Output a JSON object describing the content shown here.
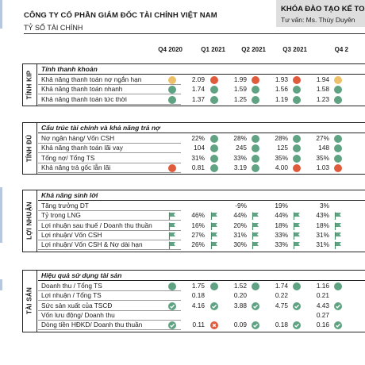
{
  "header": {
    "company": "CÔNG TY CỔ PHẦN GIÁM ĐỐC TÀI CHÍNH VIỆT NAM",
    "subtitle": "TỶ SỐ TÀI CHÍNH",
    "panel_title": "KHÓA ĐÀO TẠO KẾ TOÁ",
    "panel_sub": "Tư vấn: Ms. Thùy Duyên"
  },
  "quarters": [
    "Q4 2020",
    "Q1 2021",
    "Q2 2021",
    "Q3 2021",
    "Q4 2"
  ],
  "colors": {
    "green": "#5fa383",
    "red": "#e05a3c",
    "yellow": "#edc16a"
  },
  "sections": [
    {
      "side": "TÍNH KIP",
      "title": "Tính thanh khoản",
      "rows": [
        {
          "label": "Khả năng thanh toán nợ ngắn hạn",
          "cells": [
            {
              "icon": "yellow-dot",
              "value": "2.09"
            },
            {
              "icon": "red-dot",
              "value": "1.99"
            },
            {
              "icon": "red-dot",
              "value": "1.93"
            },
            {
              "icon": "red-dot",
              "value": "1.94"
            },
            {
              "icon": "yellow-dot",
              "value": ""
            }
          ]
        },
        {
          "label": "Khả năng thanh toán nhanh",
          "cells": [
            {
              "icon": "green-dot",
              "value": "1.74"
            },
            {
              "icon": "green-dot",
              "value": "1.59"
            },
            {
              "icon": "green-dot",
              "value": "1.56"
            },
            {
              "icon": "green-dot",
              "value": "1.58"
            },
            {
              "icon": "green-dot",
              "value": ""
            }
          ]
        },
        {
          "label": "Khả năng thanh toán tức thời",
          "cells": [
            {
              "icon": "green-dot",
              "value": "1.37"
            },
            {
              "icon": "green-dot",
              "value": "1.25"
            },
            {
              "icon": "green-dot",
              "value": "1.19"
            },
            {
              "icon": "green-dot",
              "value": "1.23"
            },
            {
              "icon": "green-dot",
              "value": ""
            }
          ]
        }
      ]
    },
    {
      "side": "TÍNH ĐỦ",
      "title": "Cấu trúc tài chính và khả năng trả nợ",
      "rows": [
        {
          "label": "Nợ ngân hàng/ Vốn CSH",
          "cells": [
            {
              "icon": "none",
              "value": "22%"
            },
            {
              "icon": "green-dot",
              "value": "28%"
            },
            {
              "icon": "green-dot",
              "value": "28%"
            },
            {
              "icon": "green-dot",
              "value": "27%"
            },
            {
              "icon": "green-dot",
              "value": ""
            }
          ]
        },
        {
          "label": "Khả năng thanh toán lãi vay",
          "cells": [
            {
              "icon": "none",
              "value": "104"
            },
            {
              "icon": "green-dot",
              "value": "245"
            },
            {
              "icon": "green-dot",
              "value": "125"
            },
            {
              "icon": "green-dot",
              "value": "148"
            },
            {
              "icon": "green-dot",
              "value": ""
            }
          ]
        },
        {
          "label": "Tổng nợ/ Tổng TS",
          "cells": [
            {
              "icon": "none",
              "value": "31%"
            },
            {
              "icon": "green-dot",
              "value": "33%"
            },
            {
              "icon": "green-dot",
              "value": "35%"
            },
            {
              "icon": "green-dot",
              "value": "35%"
            },
            {
              "icon": "green-dot",
              "value": ""
            }
          ]
        },
        {
          "label": "Khả năng trả gốc lẫn lãi",
          "cells": [
            {
              "icon": "red-dot",
              "value": "0.81"
            },
            {
              "icon": "green-dot",
              "value": "3.19"
            },
            {
              "icon": "green-dot",
              "value": "4.00"
            },
            {
              "icon": "red-dot",
              "value": "1.03"
            },
            {
              "icon": "red-dot",
              "value": ""
            }
          ]
        }
      ]
    },
    {
      "side": "LỢI NHUẬN",
      "title": "Khả năng sinh lời",
      "rows": [
        {
          "label": "Tăng trưởng DT",
          "cells": [
            {
              "icon": "none",
              "value": ""
            },
            {
              "icon": "none",
              "value": "-9%"
            },
            {
              "icon": "none",
              "value": "19%"
            },
            {
              "icon": "none",
              "value": "3%"
            },
            {
              "icon": "none",
              "value": ""
            }
          ]
        },
        {
          "label": "Tỷ trọng LNG",
          "cells": [
            {
              "icon": "flag",
              "value": "46%"
            },
            {
              "icon": "flag",
              "value": "44%"
            },
            {
              "icon": "flag",
              "value": "44%"
            },
            {
              "icon": "flag",
              "value": "43%"
            },
            {
              "icon": "flag",
              "value": ""
            }
          ]
        },
        {
          "label": "Lợi nhuận sau thuế / Doanh thu thuần",
          "cells": [
            {
              "icon": "flag",
              "value": "16%"
            },
            {
              "icon": "flag",
              "value": "20%"
            },
            {
              "icon": "flag",
              "value": "18%"
            },
            {
              "icon": "flag",
              "value": "18%"
            },
            {
              "icon": "flag",
              "value": ""
            }
          ]
        },
        {
          "label": "Lợi nhuận/ Vốn CSH",
          "cells": [
            {
              "icon": "flag",
              "value": "27%"
            },
            {
              "icon": "flag",
              "value": "31%"
            },
            {
              "icon": "flag",
              "value": "33%"
            },
            {
              "icon": "flag",
              "value": "31%"
            },
            {
              "icon": "flag",
              "value": ""
            }
          ]
        },
        {
          "label": "Lợi nhuận/ Vốn CSH & Nợ dài hạn",
          "cells": [
            {
              "icon": "flag",
              "value": "26%"
            },
            {
              "icon": "flag",
              "value": "30%"
            },
            {
              "icon": "flag",
              "value": "33%"
            },
            {
              "icon": "flag",
              "value": "31%"
            },
            {
              "icon": "flag",
              "value": ""
            }
          ]
        }
      ]
    },
    {
      "side": "TÀI SẢN",
      "title": "Hiệu quả sử dụng tài sản",
      "rows": [
        {
          "label": "Doanh thu / Tổng TS",
          "cells": [
            {
              "icon": "green-dot",
              "value": "1.75"
            },
            {
              "icon": "green-dot",
              "value": "1.52"
            },
            {
              "icon": "green-dot",
              "value": "1.74"
            },
            {
              "icon": "green-dot",
              "value": "1.16"
            },
            {
              "icon": "green-dot",
              "value": ""
            }
          ]
        },
        {
          "label": "Lợi nhuận / Tổng TS",
          "cells": [
            {
              "icon": "none",
              "value": "0.18"
            },
            {
              "icon": "none",
              "value": "0.20"
            },
            {
              "icon": "none",
              "value": "0.22"
            },
            {
              "icon": "none",
              "value": "0.21"
            },
            {
              "icon": "none",
              "value": ""
            }
          ]
        },
        {
          "label": "Sức sản xuất của TSCĐ",
          "cells": [
            {
              "icon": "check",
              "value": "4.16"
            },
            {
              "icon": "check",
              "value": "3.88"
            },
            {
              "icon": "check",
              "value": "4.75"
            },
            {
              "icon": "check",
              "value": "4.43"
            },
            {
              "icon": "check",
              "value": ""
            }
          ]
        },
        {
          "label": "Vốn lưu động/ Doanh thu",
          "cells": [
            {
              "icon": "none",
              "value": ""
            },
            {
              "icon": "none",
              "value": ""
            },
            {
              "icon": "none",
              "value": ""
            },
            {
              "icon": "none",
              "value": "0.27"
            },
            {
              "icon": "none",
              "value": ""
            }
          ]
        },
        {
          "label": "Dòng tiền HĐKD/ Doanh thu thuần",
          "cells": [
            {
              "icon": "check",
              "value": "0.11"
            },
            {
              "icon": "x",
              "value": "0.09"
            },
            {
              "icon": "check",
              "value": "0.18"
            },
            {
              "icon": "check",
              "value": "0.16"
            },
            {
              "icon": "check",
              "value": ""
            }
          ]
        }
      ]
    }
  ]
}
